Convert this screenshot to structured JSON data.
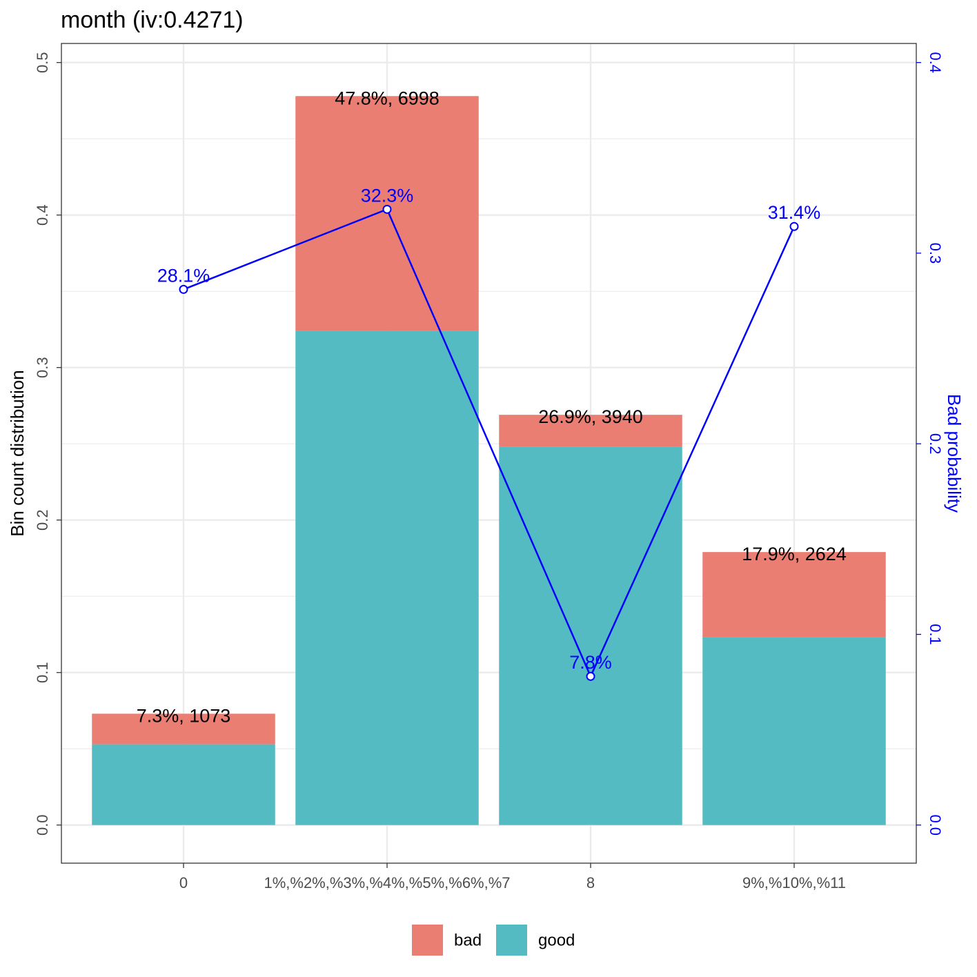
{
  "chart_data": {
    "type": "bar",
    "title": "month  (iv:0.4271)",
    "ylabel": "Bin count distribution",
    "y2label": "Bad probability",
    "ylim": [
      -0.025,
      0.5125
    ],
    "y2lim": [
      -0.02,
      0.41
    ],
    "y_ticks": [
      0.0,
      0.1,
      0.2,
      0.3,
      0.4,
      0.5
    ],
    "y_tick_labels": [
      "0.0",
      "0.1",
      "0.2",
      "0.3",
      "0.4",
      "0.5"
    ],
    "y2_ticks": [
      0.0,
      0.1,
      0.2,
      0.3,
      0.4
    ],
    "y2_tick_labels": [
      "0.0",
      "0.1",
      "0.2",
      "0.3",
      "0.4"
    ],
    "categories": [
      "0",
      "1%,%2%,%3%,%4%,%5%,%6%,%7",
      "8",
      "9%,%10%,%11"
    ],
    "series": [
      {
        "name": "good",
        "values": [
          0.053,
          0.324,
          0.248,
          0.123
        ],
        "color": "#53BBC1"
      },
      {
        "name": "bad",
        "values": [
          0.02,
          0.154,
          0.021,
          0.056
        ],
        "color": "#EA7E72"
      }
    ],
    "bar_labels": [
      "7.3%, 1073",
      "47.8%, 6998",
      "26.9%, 3940",
      "17.9%, 2624"
    ],
    "bad_probability": {
      "values": [
        0.281,
        0.323,
        0.078,
        0.314
      ],
      "labels": [
        "28.1%",
        "32.3%",
        "7.8%",
        "31.4%"
      ],
      "color": "#0000FF"
    },
    "grid": true,
    "legend": {
      "position": "bottom",
      "items": [
        "bad",
        "good"
      ]
    }
  }
}
